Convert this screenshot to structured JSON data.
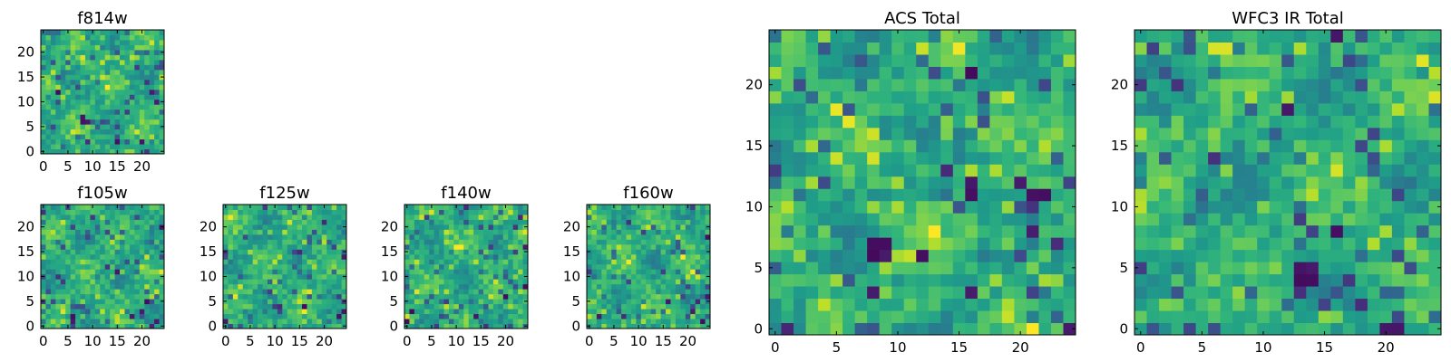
{
  "chart_data": [
    {
      "type": "heatmap",
      "title": "f814w",
      "colormap": "viridis",
      "grid": false,
      "xlim": [
        -0.5,
        24.5
      ],
      "ylim": [
        -0.5,
        24.5
      ],
      "n": 25,
      "xticks": [
        0,
        5,
        10,
        15,
        20
      ],
      "yticks": [
        0,
        5,
        10,
        15,
        20
      ],
      "xtick_labels": [
        "0",
        "5",
        "10",
        "15",
        "20"
      ],
      "ytick_labels": [
        "0",
        "5",
        "10",
        "15",
        "20"
      ],
      "dark_cells": [
        [
          8,
          6
        ],
        [
          9,
          6
        ],
        [
          8,
          7
        ],
        [
          20,
          2
        ],
        [
          22,
          12
        ],
        [
          23,
          10
        ],
        [
          3,
          12
        ],
        [
          15,
          2
        ]
      ],
      "seed": 11
    },
    {
      "type": "heatmap",
      "title": "f105w",
      "colormap": "viridis",
      "grid": false,
      "xlim": [
        -0.5,
        24.5
      ],
      "ylim": [
        -0.5,
        24.5
      ],
      "n": 25,
      "xticks": [
        0,
        5,
        10,
        15,
        20
      ],
      "yticks": [
        0,
        5,
        10,
        15,
        20
      ],
      "xtick_labels": [
        "0",
        "5",
        "10",
        "15",
        "20"
      ],
      "ytick_labels": [
        "0",
        "5",
        "10",
        "15",
        "20"
      ],
      "dark_cells": [
        [
          6,
          1
        ],
        [
          6,
          2
        ],
        [
          20,
          3
        ],
        [
          23,
          1
        ],
        [
          18,
          2
        ],
        [
          24,
          20
        ],
        [
          21,
          5
        ]
      ],
      "seed": 23
    },
    {
      "type": "heatmap",
      "title": "f125w",
      "colormap": "viridis",
      "grid": false,
      "xlim": [
        -0.5,
        24.5
      ],
      "ylim": [
        -0.5,
        24.5
      ],
      "n": 25,
      "xticks": [
        0,
        5,
        10,
        15,
        20
      ],
      "yticks": [
        0,
        5,
        10,
        15,
        20
      ],
      "xtick_labels": [
        "0",
        "5",
        "10",
        "15",
        "20"
      ],
      "ytick_labels": [
        "0",
        "5",
        "10",
        "15",
        "20"
      ],
      "dark_cells": [
        [
          24,
          14
        ],
        [
          23,
          2
        ],
        [
          0,
          1
        ],
        [
          16,
          4
        ],
        [
          24,
          3
        ]
      ],
      "seed": 37
    },
    {
      "type": "heatmap",
      "title": "f140w",
      "colormap": "viridis",
      "grid": false,
      "xlim": [
        -0.5,
        24.5
      ],
      "ylim": [
        -0.5,
        24.5
      ],
      "n": 25,
      "xticks": [
        0,
        5,
        10,
        15,
        20
      ],
      "yticks": [
        0,
        5,
        10,
        15,
        20
      ],
      "xtick_labels": [
        "0",
        "5",
        "10",
        "15",
        "20"
      ],
      "ytick_labels": [
        "0",
        "5",
        "10",
        "15",
        "20"
      ],
      "dark_cells": [
        [
          0,
          1
        ],
        [
          1,
          3
        ],
        [
          14,
          2
        ],
        [
          24,
          16
        ],
        [
          24,
          8
        ],
        [
          20,
          6
        ]
      ],
      "seed": 41
    },
    {
      "type": "heatmap",
      "title": "f160w",
      "colormap": "viridis",
      "grid": false,
      "xlim": [
        -0.5,
        24.5
      ],
      "ylim": [
        -0.5,
        24.5
      ],
      "n": 25,
      "xticks": [
        0,
        5,
        10,
        15,
        20
      ],
      "yticks": [
        0,
        5,
        10,
        15,
        20
      ],
      "xtick_labels": [
        "0",
        "5",
        "10",
        "15",
        "20"
      ],
      "ytick_labels": [
        "0",
        "5",
        "10",
        "15",
        "20"
      ],
      "dark_cells": [
        [
          16,
          5
        ],
        [
          21,
          3
        ],
        [
          23,
          1
        ],
        [
          24,
          6
        ],
        [
          24,
          18
        ],
        [
          2,
          2
        ]
      ],
      "seed": 53
    },
    {
      "type": "heatmap",
      "title": "ACS Total",
      "colormap": "viridis",
      "grid": false,
      "xlim": [
        -0.5,
        24.5
      ],
      "ylim": [
        -0.5,
        24.5
      ],
      "n": 25,
      "xticks": [
        0,
        5,
        10,
        15,
        20
      ],
      "yticks": [
        0,
        5,
        10,
        15,
        20
      ],
      "xtick_labels": [
        "0",
        "5",
        "10",
        "15",
        "20"
      ],
      "ytick_labels": [
        "0",
        "5",
        "10",
        "15",
        "20"
      ],
      "dark_cells": [
        [
          8,
          7
        ],
        [
          9,
          7
        ],
        [
          8,
          6
        ],
        [
          9,
          6
        ],
        [
          16,
          12
        ],
        [
          16,
          11
        ],
        [
          20,
          12
        ],
        [
          21,
          11
        ],
        [
          22,
          11
        ],
        [
          16,
          21
        ],
        [
          8,
          3
        ],
        [
          16,
          3
        ],
        [
          24,
          0
        ],
        [
          12,
          6
        ]
      ],
      "seed": 67
    },
    {
      "type": "heatmap",
      "title": "WFC3 IR Total",
      "colormap": "viridis",
      "grid": false,
      "xlim": [
        -0.5,
        24.5
      ],
      "ylim": [
        -0.5,
        24.5
      ],
      "n": 25,
      "xticks": [
        0,
        5,
        10,
        15,
        20
      ],
      "yticks": [
        0,
        5,
        10,
        15,
        20
      ],
      "xtick_labels": [
        "0",
        "5",
        "10",
        "15",
        "20"
      ],
      "ytick_labels": [
        "0",
        "5",
        "10",
        "15",
        "20"
      ],
      "dark_cells": [
        [
          13,
          5
        ],
        [
          14,
          5
        ],
        [
          13,
          4
        ],
        [
          14,
          4
        ],
        [
          20,
          0
        ],
        [
          21,
          0
        ],
        [
          12,
          18
        ],
        [
          16,
          8
        ],
        [
          16,
          24
        ]
      ],
      "seed": 79
    }
  ]
}
